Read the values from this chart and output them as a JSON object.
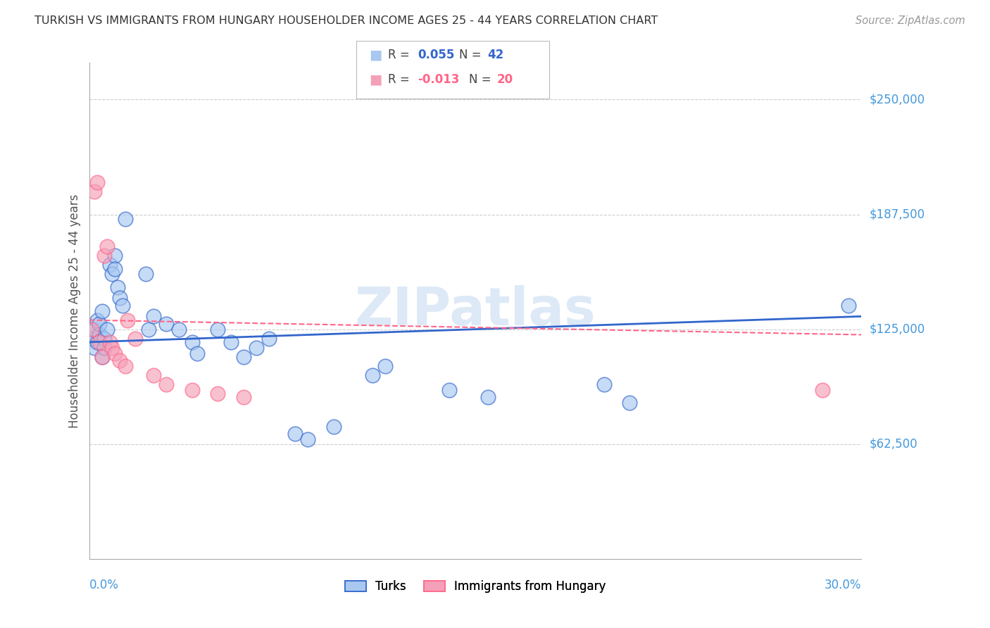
{
  "title": "TURKISH VS IMMIGRANTS FROM HUNGARY HOUSEHOLDER INCOME AGES 25 - 44 YEARS CORRELATION CHART",
  "source": "Source: ZipAtlas.com",
  "ylabel": "Householder Income Ages 25 - 44 years",
  "ytick_labels": [
    "$62,500",
    "$125,000",
    "$187,500",
    "$250,000"
  ],
  "ytick_values": [
    62500,
    125000,
    187500,
    250000
  ],
  "ymin": 0,
  "ymax": 270000,
  "xmin": 0.0,
  "xmax": 0.3,
  "watermark": "ZIPatlas",
  "legend_turks_R": "0.055",
  "legend_turks_N": "42",
  "legend_hungary_R": "-0.013",
  "legend_hungary_N": "20",
  "turks_color": "#A8C8F0",
  "hungary_color": "#F4A0B8",
  "turks_line_color": "#3366CC",
  "hungary_line_color": "#FF6688",
  "turks_points": [
    [
      0.001,
      120000
    ],
    [
      0.002,
      115000
    ],
    [
      0.002,
      125000
    ],
    [
      0.003,
      118000
    ],
    [
      0.003,
      130000
    ],
    [
      0.004,
      122000
    ],
    [
      0.004,
      128000
    ],
    [
      0.005,
      110000
    ],
    [
      0.005,
      135000
    ],
    [
      0.006,
      120000
    ],
    [
      0.006,
      115000
    ],
    [
      0.007,
      125000
    ],
    [
      0.008,
      160000
    ],
    [
      0.009,
      155000
    ],
    [
      0.01,
      165000
    ],
    [
      0.01,
      158000
    ],
    [
      0.011,
      148000
    ],
    [
      0.012,
      142000
    ],
    [
      0.013,
      138000
    ],
    [
      0.014,
      185000
    ],
    [
      0.022,
      155000
    ],
    [
      0.023,
      125000
    ],
    [
      0.025,
      132000
    ],
    [
      0.03,
      128000
    ],
    [
      0.035,
      125000
    ],
    [
      0.04,
      118000
    ],
    [
      0.042,
      112000
    ],
    [
      0.05,
      125000
    ],
    [
      0.055,
      118000
    ],
    [
      0.06,
      110000
    ],
    [
      0.065,
      115000
    ],
    [
      0.07,
      120000
    ],
    [
      0.08,
      68000
    ],
    [
      0.085,
      65000
    ],
    [
      0.095,
      72000
    ],
    [
      0.11,
      100000
    ],
    [
      0.115,
      105000
    ],
    [
      0.14,
      92000
    ],
    [
      0.155,
      88000
    ],
    [
      0.2,
      95000
    ],
    [
      0.21,
      85000
    ],
    [
      0.295,
      138000
    ]
  ],
  "hungary_points": [
    [
      0.001,
      125000
    ],
    [
      0.002,
      200000
    ],
    [
      0.003,
      205000
    ],
    [
      0.004,
      118000
    ],
    [
      0.005,
      110000
    ],
    [
      0.006,
      165000
    ],
    [
      0.007,
      170000
    ],
    [
      0.008,
      118000
    ],
    [
      0.009,
      115000
    ],
    [
      0.01,
      112000
    ],
    [
      0.012,
      108000
    ],
    [
      0.014,
      105000
    ],
    [
      0.015,
      130000
    ],
    [
      0.018,
      120000
    ],
    [
      0.025,
      100000
    ],
    [
      0.03,
      95000
    ],
    [
      0.04,
      92000
    ],
    [
      0.05,
      90000
    ],
    [
      0.06,
      88000
    ],
    [
      0.285,
      92000
    ]
  ],
  "title_color": "#333333",
  "source_color": "#999999",
  "axis_label_color": "#555555",
  "ytick_color": "#4499DD",
  "grid_color": "#CCCCCC",
  "background_color": "#FFFFFF"
}
